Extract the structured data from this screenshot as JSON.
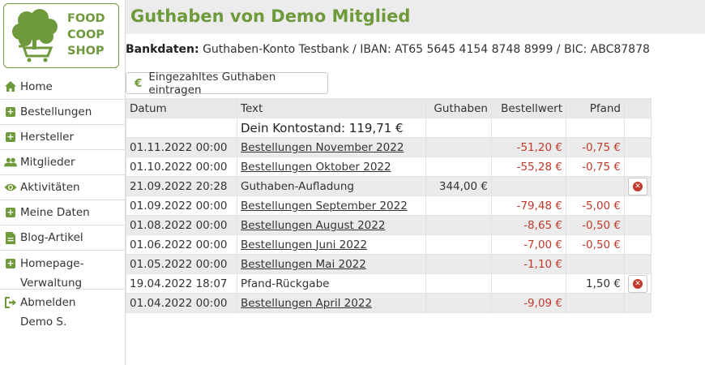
{
  "logo": {
    "line1": "FOOD",
    "line2": "COOP",
    "line3": "SHOP"
  },
  "nav": [
    {
      "label": "Home",
      "icon": "home-icon"
    },
    {
      "label": "Bestellungen",
      "icon": "plus-square-icon"
    },
    {
      "label": "Hersteller",
      "icon": "plus-square-icon"
    },
    {
      "label": "Mitglieder",
      "icon": "users-icon"
    },
    {
      "label": "Aktivitäten",
      "icon": "eye-icon"
    },
    {
      "label": "Meine Daten",
      "icon": "plus-square-icon"
    },
    {
      "label": "Blog-Artikel",
      "icon": "document-icon"
    },
    {
      "label_line1": "Homepage-",
      "label_line2": "Verwaltung",
      "icon": "plus-square-icon"
    },
    {
      "label_line1": "Abmelden",
      "label_line2": "Demo S.",
      "icon": "sign-out-icon"
    }
  ],
  "header": {
    "title": "Guthaben von Demo Mitglied"
  },
  "bank": {
    "label": "Bankdaten:",
    "text": "Guthaben-Konto Testbank / IBAN: AT65 5645 4154 8748 8999 / BIC: ABC87878"
  },
  "add_button": {
    "icon": "€",
    "label": "Eingezahltes Guthaben eintragen"
  },
  "table": {
    "headers": {
      "datum": "Datum",
      "text": "Text",
      "guthaben": "Guthaben",
      "bestellwert": "Bestellwert",
      "pfand": "Pfand"
    },
    "balance": "Dein Kontostand: 119,71 €",
    "rows": [
      {
        "datum": "01.11.2022 00:00",
        "text": "Bestellungen November 2022",
        "guthaben": "",
        "bestellwert": "-51,20 €",
        "pfand": "-0,75 €"
      },
      {
        "datum": "01.10.2022 00:00",
        "text": "Bestellungen Oktober 2022",
        "guthaben": "",
        "bestellwert": "-55,28 €",
        "pfand": "-0,75 €"
      },
      {
        "datum": "21.09.2022 20:28",
        "text": "Guthaben-Aufladung",
        "guthaben": "344,00 €",
        "bestellwert": "",
        "pfand": ""
      },
      {
        "datum": "01.09.2022 00:00",
        "text": "Bestellungen September 2022",
        "guthaben": "",
        "bestellwert": "-79,48 €",
        "pfand": "-5,00 €"
      },
      {
        "datum": "01.08.2022 00:00",
        "text": "Bestellungen August 2022",
        "guthaben": "",
        "bestellwert": "-8,65 €",
        "pfand": "-0,50 €"
      },
      {
        "datum": "01.06.2022 00:00",
        "text": "Bestellungen Juni 2022",
        "guthaben": "",
        "bestellwert": "-7,00 €",
        "pfand": "-0,50 €"
      },
      {
        "datum": "01.05.2022 00:00",
        "text": "Bestellungen Mai 2022",
        "guthaben": "",
        "bestellwert": "-1,10 €",
        "pfand": ""
      },
      {
        "datum": "19.04.2022 18:07",
        "text": "Pfand-Rückgabe",
        "guthaben": "",
        "bestellwert": "",
        "pfand": "1,50 €"
      },
      {
        "datum": "01.04.2022 00:00",
        "text": "Bestellungen April 2022",
        "guthaben": "",
        "bestellwert": "-9,09 €",
        "pfand": ""
      }
    ]
  },
  "colors": {
    "accent": "#6f9a3c",
    "negative": "#c0392b",
    "header_bg": "#ececec"
  }
}
